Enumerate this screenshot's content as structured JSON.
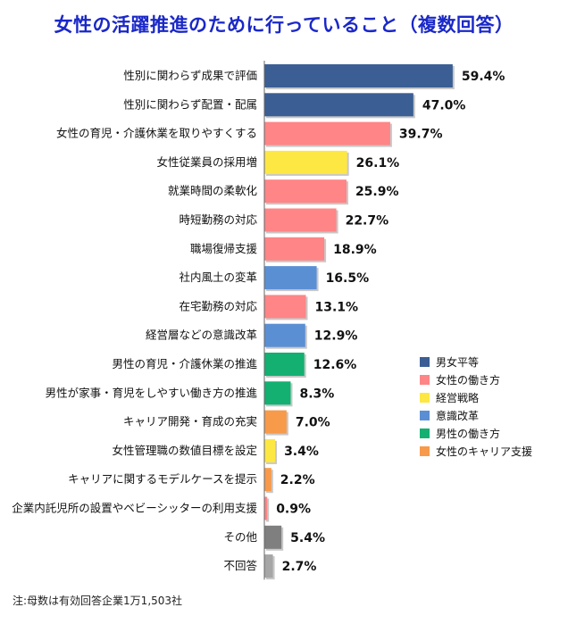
{
  "chart_data": {
    "type": "bar",
    "orientation": "horizontal",
    "title": "女性の活躍推進のために行っていること（複数回答）",
    "footnote": "注:母数は有効回答企業1万1,503社",
    "unit": "%",
    "legend_position": "right",
    "groups": [
      {
        "key": "gender_equality",
        "name": "男女平等",
        "color": "#3b5f94"
      },
      {
        "key": "women_work",
        "name": "女性の働き方",
        "color": "#ff8586"
      },
      {
        "key": "management",
        "name": "経営戦略",
        "color": "#fde743"
      },
      {
        "key": "awareness",
        "name": "意識改革",
        "color": "#5b8fd4"
      },
      {
        "key": "men_work",
        "name": "男性の働き方",
        "color": "#13b072"
      },
      {
        "key": "career",
        "name": "女性のキャリア支援",
        "color": "#f79a4a"
      }
    ],
    "items": [
      {
        "label": "性別に関わらず成果で評価",
        "value": 59.4,
        "value_label": "59.4%",
        "group": "gender_equality"
      },
      {
        "label": "性別に関わらず配置・配属",
        "value": 47.0,
        "value_label": "47.0%",
        "group": "gender_equality"
      },
      {
        "label": "女性の育児・介護休業を取りやすくする",
        "value": 39.7,
        "value_label": "39.7%",
        "group": "women_work"
      },
      {
        "label": "女性従業員の採用増",
        "value": 26.1,
        "value_label": "26.1%",
        "group": "management"
      },
      {
        "label": "就業時間の柔軟化",
        "value": 25.9,
        "value_label": "25.9%",
        "group": "women_work"
      },
      {
        "label": "時短勤務の対応",
        "value": 22.7,
        "value_label": "22.7%",
        "group": "women_work"
      },
      {
        "label": "職場復帰支援",
        "value": 18.9,
        "value_label": "18.9%",
        "group": "women_work"
      },
      {
        "label": "社内風土の変革",
        "value": 16.5,
        "value_label": "16.5%",
        "group": "awareness"
      },
      {
        "label": "在宅勤務の対応",
        "value": 13.1,
        "value_label": "13.1%",
        "group": "women_work"
      },
      {
        "label": "経営層などの意識改革",
        "value": 12.9,
        "value_label": "12.9%",
        "group": "awareness"
      },
      {
        "label": "男性の育児・介護休業の推進",
        "value": 12.6,
        "value_label": "12.6%",
        "group": "men_work"
      },
      {
        "label": "男性が家事・育児をしやすい働き方の推進",
        "value": 8.3,
        "value_label": "8.3%",
        "group": "men_work"
      },
      {
        "label": "キャリア開発・育成の充実",
        "value": 7.0,
        "value_label": "7.0%",
        "group": "career"
      },
      {
        "label": "女性管理職の数値目標を設定",
        "value": 3.4,
        "value_label": "3.4%",
        "group": "management"
      },
      {
        "label": "キャリアに関するモデルケースを提示",
        "value": 2.2,
        "value_label": "2.2%",
        "group": "career"
      },
      {
        "label": "企業内託児所の設置やベビーシッターの利用支援",
        "value": 0.9,
        "value_label": "0.9%",
        "group": "women_work"
      },
      {
        "label": "その他",
        "value": 5.4,
        "value_label": "5.4%",
        "group": "other",
        "color": "#7f7f7f"
      },
      {
        "label": "不回答",
        "value": 2.7,
        "value_label": "2.7%",
        "group": "other",
        "color": "#a6a6a6"
      }
    ]
  }
}
